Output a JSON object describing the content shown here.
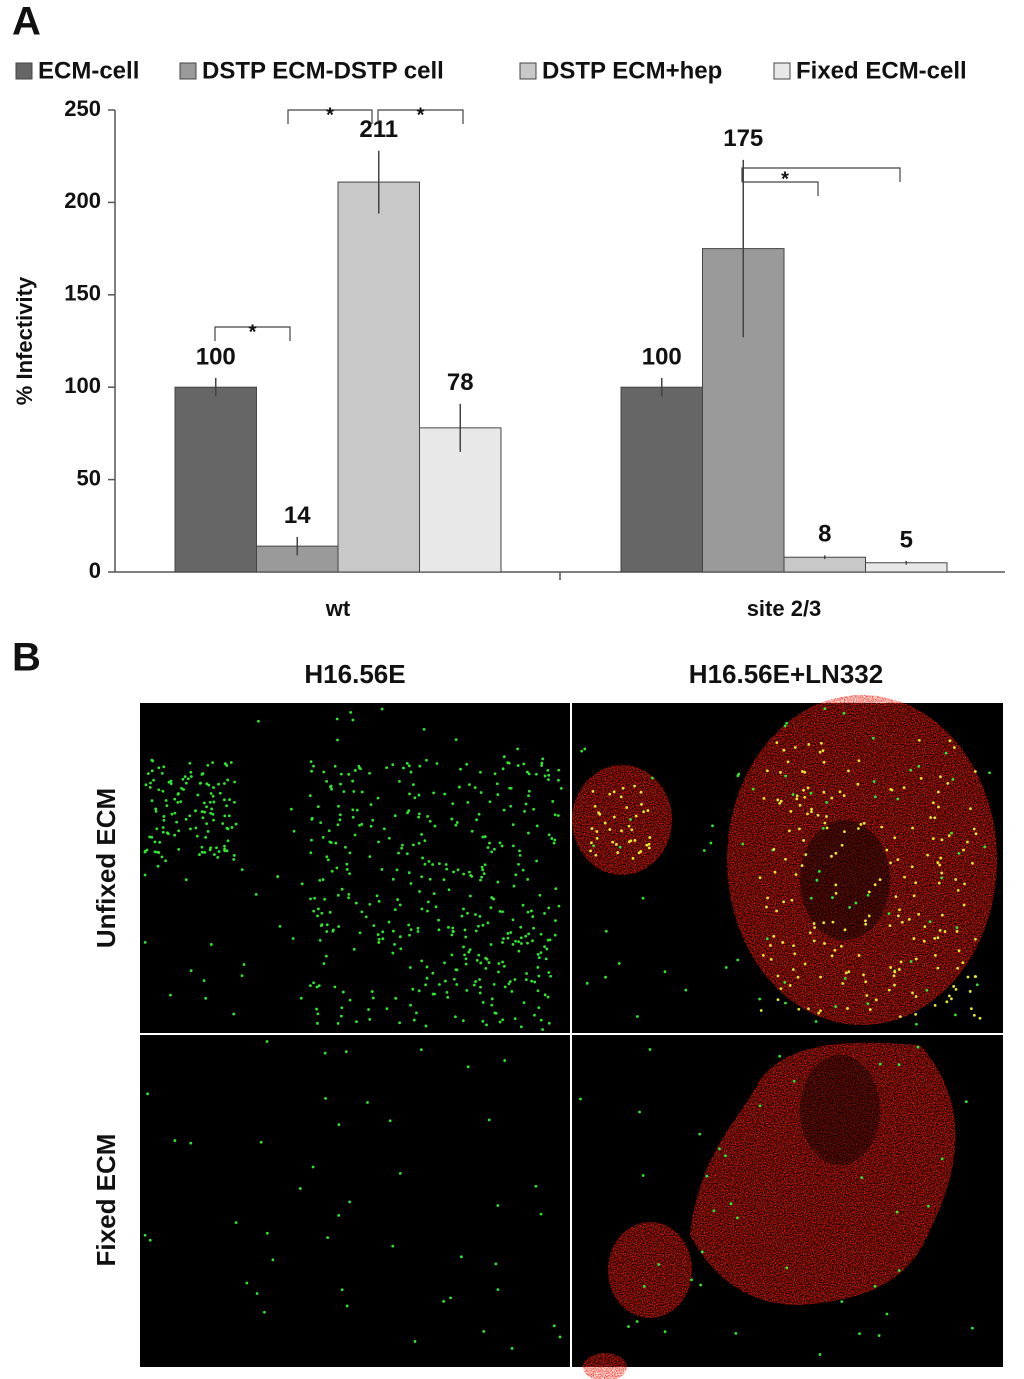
{
  "panel_labels": [
    "A",
    "B"
  ],
  "chart_data": {
    "type": "bar",
    "ylabel": "% Infectivity",
    "categories": [
      "wt",
      "site 2/3"
    ],
    "series": [
      {
        "name": "ECM-cell",
        "color": "#666666",
        "values": [
          100,
          100
        ],
        "errors": [
          5,
          5
        ]
      },
      {
        "name": "DSTP ECM-DSTP cell",
        "color": "#9a9a9a",
        "values": [
          14,
          175
        ],
        "errors": [
          5,
          48
        ]
      },
      {
        "name": "DSTP ECM+hep",
        "color": "#c8c8c8",
        "values": [
          211,
          8
        ],
        "errors": [
          17,
          1
        ]
      },
      {
        "name": "Fixed ECM-cell",
        "color": "#e8e8e8",
        "values": [
          78,
          5
        ],
        "errors": [
          13,
          1
        ]
      }
    ],
    "ylim": [
      0,
      250
    ],
    "yticks": [
      0,
      50,
      100,
      150,
      200,
      250
    ],
    "grid": false,
    "legend": "top",
    "annotations": [
      "*",
      "*",
      "*",
      "*"
    ]
  },
  "images": {
    "columns": [
      "H16.56E",
      "H16.56E+LN332"
    ],
    "rows": [
      "Unfixed ECM",
      "Fixed ECM"
    ]
  }
}
